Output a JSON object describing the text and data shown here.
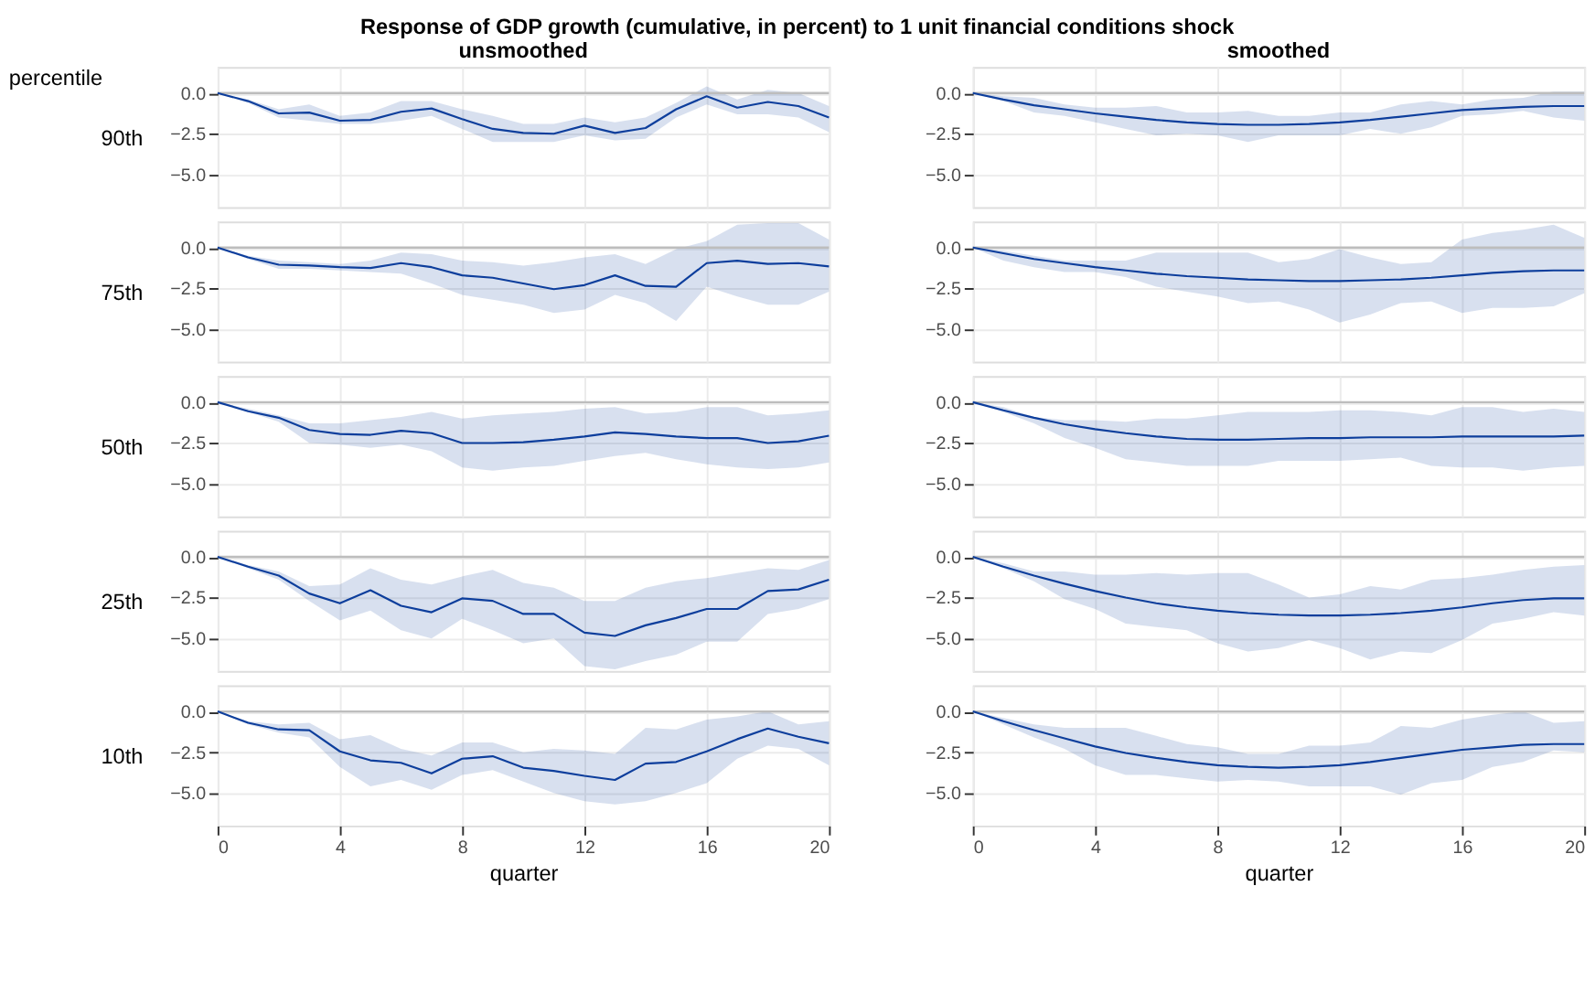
{
  "chart_data": [
    {
      "type": "line",
      "title": "Response of GDP growth (cumulative, in percent) to 1 unit financial conditions shock",
      "subtitle": "unsmoothed",
      "ylabel": "90th",
      "annotations": [
        "percentile"
      ],
      "x": [
        0,
        1,
        2,
        3,
        4,
        5,
        6,
        7,
        8,
        9,
        10,
        11,
        12,
        13,
        14,
        15,
        16,
        17,
        18,
        19,
        20
      ],
      "xlim": [
        0,
        20
      ],
      "xticks": [
        0,
        4,
        8,
        12,
        16,
        20
      ],
      "ylim": [
        -7,
        1.6
      ],
      "yticks": [
        {
          "value": 0,
          "label": "0.0"
        },
        {
          "value": -2.5,
          "label": "−2.5"
        },
        {
          "value": -5,
          "label": "−5.0"
        }
      ],
      "grid": true,
      "tick_labels": "y",
      "ref_lines": [
        {
          "axis": "y",
          "value": 0,
          "color": "#bdbdbd"
        }
      ],
      "series": [
        {
          "color": "#0d3e9c",
          "values": [
            0,
            -0.5,
            -1.25,
            -1.2,
            -1.7,
            -1.65,
            -1.15,
            -0.95,
            -1.6,
            -2.2,
            -2.45,
            -2.5,
            -2.0,
            -2.45,
            -2.15,
            -1.0,
            -0.2,
            -0.9,
            -0.55,
            -0.8,
            -1.5
          ],
          "lower": [
            0,
            -0.6,
            -1.5,
            -1.7,
            -1.9,
            -1.9,
            -1.7,
            -1.4,
            -2.2,
            -3.0,
            -3.0,
            -3.0,
            -2.6,
            -2.9,
            -2.8,
            -1.5,
            -0.7,
            -1.3,
            -1.3,
            -1.5,
            -2.4
          ],
          "upper": [
            0,
            -0.4,
            -1.0,
            -0.7,
            -1.4,
            -1.2,
            -0.5,
            -0.5,
            -1.0,
            -1.4,
            -1.9,
            -1.9,
            -1.5,
            -1.8,
            -1.5,
            -0.6,
            0.4,
            -0.4,
            0.2,
            0.0,
            -0.8
          ]
        }
      ]
    },
    {
      "type": "line",
      "subtitle": "smoothed",
      "x": [
        0,
        1,
        2,
        3,
        4,
        5,
        6,
        7,
        8,
        9,
        10,
        11,
        12,
        13,
        14,
        15,
        16,
        17,
        18,
        19,
        20
      ],
      "xlim": [
        0,
        20
      ],
      "xticks": [
        0,
        4,
        8,
        12,
        16,
        20
      ],
      "ylim": [
        -7,
        1.6
      ],
      "yticks": [
        {
          "value": 0,
          "label": "0.0"
        },
        {
          "value": -2.5,
          "label": "−2.5"
        },
        {
          "value": -5,
          "label": "−5.0"
        }
      ],
      "grid": true,
      "tick_labels": "y",
      "ref_lines": [
        {
          "axis": "y",
          "value": 0,
          "color": "#bdbdbd"
        }
      ],
      "series": [
        {
          "color": "#0d3e9c",
          "values": [
            0,
            -0.4,
            -0.75,
            -1.0,
            -1.25,
            -1.45,
            -1.65,
            -1.8,
            -1.9,
            -1.95,
            -1.95,
            -1.9,
            -1.8,
            -1.65,
            -1.45,
            -1.25,
            -1.05,
            -0.95,
            -0.85,
            -0.8,
            -0.8
          ],
          "lower": [
            0,
            -0.5,
            -1.2,
            -1.4,
            -1.8,
            -2.2,
            -2.6,
            -2.5,
            -2.6,
            -3.0,
            -2.6,
            -2.6,
            -2.6,
            -2.2,
            -2.5,
            -2.1,
            -1.4,
            -1.3,
            -1.1,
            -1.5,
            -1.7
          ],
          "upper": [
            0,
            -0.2,
            -0.3,
            -0.7,
            -0.9,
            -0.9,
            -0.8,
            -1.2,
            -1.2,
            -1.1,
            -1.4,
            -1.4,
            -1.2,
            -1.2,
            -0.7,
            -0.5,
            -0.7,
            -0.4,
            -0.3,
            0.1,
            0.1
          ]
        }
      ]
    },
    {
      "type": "line",
      "ylabel": "75th",
      "x": [
        0,
        1,
        2,
        3,
        4,
        5,
        6,
        7,
        8,
        9,
        10,
        11,
        12,
        13,
        14,
        15,
        16,
        17,
        18,
        19,
        20
      ],
      "xlim": [
        0,
        20
      ],
      "xticks": [
        0,
        4,
        8,
        12,
        16,
        20
      ],
      "ylim": [
        -7,
        1.6
      ],
      "yticks": [
        {
          "value": 0,
          "label": "0.0"
        },
        {
          "value": -2.5,
          "label": "−2.5"
        },
        {
          "value": -5,
          "label": "−5.0"
        }
      ],
      "grid": true,
      "tick_labels": "y",
      "ref_lines": [
        {
          "axis": "y",
          "value": 0,
          "color": "#bdbdbd"
        }
      ],
      "series": [
        {
          "color": "#0d3e9c",
          "values": [
            0,
            -0.6,
            -1.05,
            -1.1,
            -1.2,
            -1.25,
            -0.95,
            -1.2,
            -1.7,
            -1.85,
            -2.2,
            -2.55,
            -2.3,
            -1.7,
            -2.35,
            -2.4,
            -0.95,
            -0.8,
            -1.0,
            -0.95,
            -1.15
          ],
          "lower": [
            0,
            -0.7,
            -1.3,
            -1.3,
            -1.4,
            -1.5,
            -1.6,
            -2.2,
            -2.9,
            -3.2,
            -3.5,
            -4.0,
            -3.8,
            -2.9,
            -3.4,
            -4.5,
            -2.4,
            -3.0,
            -3.5,
            -3.5,
            -2.7
          ],
          "upper": [
            0,
            -0.5,
            -0.8,
            -0.9,
            -1.0,
            -0.8,
            -0.3,
            -0.4,
            -0.8,
            -0.9,
            -1.1,
            -0.9,
            -0.6,
            -0.4,
            -1.0,
            -0.1,
            0.4,
            1.4,
            1.5,
            1.5,
            0.5
          ]
        }
      ]
    },
    {
      "type": "line",
      "x": [
        0,
        1,
        2,
        3,
        4,
        5,
        6,
        7,
        8,
        9,
        10,
        11,
        12,
        13,
        14,
        15,
        16,
        17,
        18,
        19,
        20
      ],
      "xlim": [
        0,
        20
      ],
      "xticks": [
        0,
        4,
        8,
        12,
        16,
        20
      ],
      "ylim": [
        -7,
        1.6
      ],
      "yticks": [
        {
          "value": 0,
          "label": "0.0"
        },
        {
          "value": -2.5,
          "label": "−2.5"
        },
        {
          "value": -5,
          "label": "−5.0"
        }
      ],
      "grid": true,
      "tick_labels": "y",
      "ref_lines": [
        {
          "axis": "y",
          "value": 0,
          "color": "#bdbdbd"
        }
      ],
      "series": [
        {
          "color": "#0d3e9c",
          "values": [
            0,
            -0.35,
            -0.7,
            -0.95,
            -1.2,
            -1.4,
            -1.6,
            -1.75,
            -1.85,
            -1.95,
            -2.0,
            -2.05,
            -2.05,
            -2.0,
            -1.95,
            -1.85,
            -1.7,
            -1.55,
            -1.45,
            -1.4,
            -1.4
          ],
          "lower": [
            0,
            -0.8,
            -1.2,
            -1.5,
            -1.5,
            -1.8,
            -2.4,
            -2.7,
            -3.0,
            -3.4,
            -3.3,
            -3.8,
            -4.6,
            -4.1,
            -3.4,
            -3.3,
            -4.0,
            -3.7,
            -3.7,
            -3.6,
            -2.8
          ],
          "upper": [
            0,
            -0.2,
            -0.5,
            -0.8,
            -0.8,
            -0.8,
            -0.3,
            -0.3,
            -0.3,
            -0.3,
            -0.9,
            -0.7,
            -0.1,
            -0.6,
            -1.0,
            -0.9,
            0.5,
            0.9,
            1.1,
            1.4,
            0.6
          ]
        }
      ]
    },
    {
      "type": "line",
      "ylabel": "50th",
      "x": [
        0,
        1,
        2,
        3,
        4,
        5,
        6,
        7,
        8,
        9,
        10,
        11,
        12,
        13,
        14,
        15,
        16,
        17,
        18,
        19,
        20
      ],
      "xlim": [
        0,
        20
      ],
      "xticks": [
        0,
        4,
        8,
        12,
        16,
        20
      ],
      "ylim": [
        -7,
        1.6
      ],
      "yticks": [
        {
          "value": 0,
          "label": "0.0"
        },
        {
          "value": -2.5,
          "label": "−2.5"
        },
        {
          "value": -5,
          "label": "−5.0"
        }
      ],
      "grid": true,
      "tick_labels": "y",
      "ref_lines": [
        {
          "axis": "y",
          "value": 0,
          "color": "#bdbdbd"
        }
      ],
      "series": [
        {
          "color": "#0d3e9c",
          "values": [
            0,
            -0.55,
            -0.95,
            -1.7,
            -1.95,
            -2.0,
            -1.75,
            -1.9,
            -2.5,
            -2.5,
            -2.45,
            -2.3,
            -2.1,
            -1.85,
            -1.95,
            -2.1,
            -2.2,
            -2.2,
            -2.5,
            -2.4,
            -2.05
          ],
          "lower": [
            0,
            -0.6,
            -1.2,
            -2.5,
            -2.6,
            -2.8,
            -2.6,
            -3.0,
            -4.0,
            -4.2,
            -4.0,
            -3.9,
            -3.6,
            -3.3,
            -3.1,
            -3.5,
            -3.8,
            -4.0,
            -4.1,
            -4.0,
            -3.7
          ],
          "upper": [
            0,
            -0.4,
            -0.8,
            -1.3,
            -1.3,
            -1.1,
            -0.9,
            -0.6,
            -1.0,
            -0.8,
            -0.7,
            -0.6,
            -0.4,
            -0.3,
            -0.7,
            -0.6,
            -0.3,
            -0.3,
            -0.8,
            -0.7,
            -0.5
          ]
        }
      ]
    },
    {
      "type": "line",
      "x": [
        0,
        1,
        2,
        3,
        4,
        5,
        6,
        7,
        8,
        9,
        10,
        11,
        12,
        13,
        14,
        15,
        16,
        17,
        18,
        19,
        20
      ],
      "xlim": [
        0,
        20
      ],
      "xticks": [
        0,
        4,
        8,
        12,
        16,
        20
      ],
      "ylim": [
        -7,
        1.6
      ],
      "yticks": [
        {
          "value": 0,
          "label": "0.0"
        },
        {
          "value": -2.5,
          "label": "−2.5"
        },
        {
          "value": -5,
          "label": "−5.0"
        }
      ],
      "grid": true,
      "tick_labels": "y",
      "ref_lines": [
        {
          "axis": "y",
          "value": 0,
          "color": "#bdbdbd"
        }
      ],
      "series": [
        {
          "color": "#0d3e9c",
          "values": [
            0,
            -0.5,
            -0.95,
            -1.35,
            -1.65,
            -1.9,
            -2.1,
            -2.25,
            -2.3,
            -2.3,
            -2.25,
            -2.2,
            -2.2,
            -2.15,
            -2.15,
            -2.15,
            -2.1,
            -2.1,
            -2.1,
            -2.1,
            -2.05
          ],
          "lower": [
            0,
            -0.6,
            -1.3,
            -2.2,
            -2.8,
            -3.5,
            -3.7,
            -3.9,
            -3.9,
            -3.9,
            -3.6,
            -3.6,
            -3.6,
            -3.5,
            -3.4,
            -3.9,
            -4.0,
            -4.0,
            -4.2,
            -4.0,
            -3.9
          ],
          "upper": [
            0,
            -0.3,
            -0.9,
            -1.1,
            -1.1,
            -1.2,
            -1.0,
            -1.0,
            -0.8,
            -0.6,
            -0.6,
            -0.6,
            -0.5,
            -0.5,
            -0.6,
            -0.8,
            -0.3,
            -0.3,
            -0.6,
            -0.4,
            -0.6
          ]
        }
      ]
    },
    {
      "type": "line",
      "ylabel": "25th",
      "x": [
        0,
        1,
        2,
        3,
        4,
        5,
        6,
        7,
        8,
        9,
        10,
        11,
        12,
        13,
        14,
        15,
        16,
        17,
        18,
        19,
        20
      ],
      "xlim": [
        0,
        20
      ],
      "xticks": [
        0,
        4,
        8,
        12,
        16,
        20
      ],
      "ylim": [
        -7,
        1.6
      ],
      "yticks": [
        {
          "value": 0,
          "label": "0.0"
        },
        {
          "value": -2.5,
          "label": "−2.5"
        },
        {
          "value": -5,
          "label": "−5.0"
        }
      ],
      "grid": true,
      "tick_labels": "y",
      "ref_lines": [
        {
          "axis": "y",
          "value": 0,
          "color": "#bdbdbd"
        }
      ],
      "series": [
        {
          "color": "#0d3e9c",
          "values": [
            0,
            -0.6,
            -1.15,
            -2.25,
            -2.85,
            -2.05,
            -3.0,
            -3.4,
            -2.55,
            -2.7,
            -3.5,
            -3.5,
            -4.65,
            -4.85,
            -4.2,
            -3.75,
            -3.2,
            -3.2,
            -2.1,
            -2.0,
            -1.4
          ],
          "lower": [
            0,
            -0.7,
            -1.4,
            -2.7,
            -3.9,
            -3.3,
            -4.5,
            -5.0,
            -3.8,
            -4.5,
            -5.3,
            -5.0,
            -6.7,
            -6.9,
            -6.4,
            -6.0,
            -5.2,
            -5.2,
            -3.5,
            -3.2,
            -2.6
          ],
          "upper": [
            0,
            -0.5,
            -0.9,
            -1.8,
            -1.7,
            -0.7,
            -1.4,
            -1.7,
            -1.2,
            -0.8,
            -1.6,
            -1.9,
            -2.7,
            -2.7,
            -1.9,
            -1.5,
            -1.3,
            -1.0,
            -0.7,
            -0.8,
            -0.2
          ]
        }
      ]
    },
    {
      "type": "line",
      "x": [
        0,
        1,
        2,
        3,
        4,
        5,
        6,
        7,
        8,
        9,
        10,
        11,
        12,
        13,
        14,
        15,
        16,
        17,
        18,
        19,
        20
      ],
      "xlim": [
        0,
        20
      ],
      "xticks": [
        0,
        4,
        8,
        12,
        16,
        20
      ],
      "ylim": [
        -7,
        1.6
      ],
      "yticks": [
        {
          "value": 0,
          "label": "0.0"
        },
        {
          "value": -2.5,
          "label": "−2.5"
        },
        {
          "value": -5,
          "label": "−5.0"
        }
      ],
      "grid": true,
      "tick_labels": "y",
      "ref_lines": [
        {
          "axis": "y",
          "value": 0,
          "color": "#bdbdbd"
        }
      ],
      "series": [
        {
          "color": "#0d3e9c",
          "values": [
            0,
            -0.6,
            -1.15,
            -1.65,
            -2.1,
            -2.5,
            -2.85,
            -3.1,
            -3.3,
            -3.45,
            -3.55,
            -3.6,
            -3.6,
            -3.55,
            -3.45,
            -3.3,
            -3.1,
            -2.85,
            -2.65,
            -2.55,
            -2.55
          ],
          "lower": [
            0,
            -0.7,
            -1.5,
            -2.6,
            -3.2,
            -4.1,
            -4.3,
            -4.5,
            -5.3,
            -5.8,
            -5.6,
            -5.1,
            -5.6,
            -6.3,
            -5.8,
            -5.9,
            -5.1,
            -4.1,
            -3.8,
            -3.4,
            -3.6
          ],
          "upper": [
            0,
            -0.4,
            -0.9,
            -0.9,
            -1.1,
            -1.1,
            -1.0,
            -1.1,
            -1.0,
            -1.0,
            -1.7,
            -2.5,
            -2.3,
            -1.8,
            -2.0,
            -1.4,
            -1.3,
            -1.1,
            -0.8,
            -0.6,
            -0.5
          ]
        }
      ]
    },
    {
      "type": "line",
      "ylabel": "10th",
      "xlabel": "quarter",
      "x": [
        0,
        1,
        2,
        3,
        4,
        5,
        6,
        7,
        8,
        9,
        10,
        11,
        12,
        13,
        14,
        15,
        16,
        17,
        18,
        19,
        20
      ],
      "xlim": [
        0,
        20
      ],
      "xticks": [
        0,
        4,
        8,
        12,
        16,
        20
      ],
      "ylim": [
        -7,
        1.6
      ],
      "yticks": [
        {
          "value": 0,
          "label": "0.0"
        },
        {
          "value": -2.5,
          "label": "−2.5"
        },
        {
          "value": -5,
          "label": "−5.0"
        }
      ],
      "grid": true,
      "ref_lines": [
        {
          "axis": "y",
          "value": 0,
          "color": "#bdbdbd"
        }
      ],
      "series": [
        {
          "color": "#0d3e9c",
          "values": [
            0,
            -0.7,
            -1.1,
            -1.15,
            -2.45,
            -3.0,
            -3.15,
            -3.8,
            -2.9,
            -2.75,
            -3.45,
            -3.65,
            -3.95,
            -4.2,
            -3.2,
            -3.1,
            -2.45,
            -1.7,
            -1.05,
            -1.55,
            -1.95
          ],
          "lower": [
            0,
            -0.8,
            -1.3,
            -1.6,
            -3.4,
            -4.6,
            -4.2,
            -4.8,
            -3.9,
            -3.6,
            -4.3,
            -5.0,
            -5.5,
            -5.7,
            -5.5,
            -5.0,
            -4.4,
            -2.9,
            -2.1,
            -2.3,
            -3.3
          ],
          "upper": [
            0,
            -0.6,
            -0.8,
            -0.7,
            -1.7,
            -1.45,
            -2.3,
            -2.7,
            -1.9,
            -1.9,
            -2.5,
            -2.3,
            -2.4,
            -2.6,
            -1.0,
            -1.1,
            -0.5,
            -0.3,
            0.0,
            -0.8,
            -0.6
          ]
        }
      ]
    },
    {
      "type": "line",
      "xlabel": "quarter",
      "x": [
        0,
        1,
        2,
        3,
        4,
        5,
        6,
        7,
        8,
        9,
        10,
        11,
        12,
        13,
        14,
        15,
        16,
        17,
        18,
        19,
        20
      ],
      "xlim": [
        0,
        20
      ],
      "xticks": [
        0,
        4,
        8,
        12,
        16,
        20
      ],
      "ylim": [
        -7,
        1.6
      ],
      "yticks": [
        {
          "value": 0,
          "label": "0.0"
        },
        {
          "value": -2.5,
          "label": "−2.5"
        },
        {
          "value": -5,
          "label": "−5.0"
        }
      ],
      "grid": true,
      "ref_lines": [
        {
          "axis": "y",
          "value": 0,
          "color": "#bdbdbd"
        }
      ],
      "series": [
        {
          "color": "#0d3e9c",
          "values": [
            0,
            -0.6,
            -1.15,
            -1.65,
            -2.15,
            -2.55,
            -2.85,
            -3.1,
            -3.3,
            -3.4,
            -3.45,
            -3.4,
            -3.3,
            -3.1,
            -2.85,
            -2.6,
            -2.35,
            -2.2,
            -2.05,
            -2.0,
            -2.0
          ],
          "lower": [
            0,
            -0.8,
            -1.6,
            -2.3,
            -3.3,
            -3.9,
            -3.9,
            -4.1,
            -4.3,
            -4.2,
            -4.3,
            -4.6,
            -4.6,
            -4.6,
            -5.1,
            -4.4,
            -4.2,
            -3.4,
            -3.1,
            -2.4,
            -2.5
          ],
          "upper": [
            0,
            -0.4,
            -0.8,
            -1.0,
            -1.0,
            -1.0,
            -1.5,
            -2.0,
            -2.2,
            -2.6,
            -2.6,
            -2.1,
            -2.1,
            -1.9,
            -0.9,
            -1.0,
            -0.5,
            -0.2,
            0.0,
            -0.7,
            -0.6
          ]
        }
      ]
    }
  ]
}
